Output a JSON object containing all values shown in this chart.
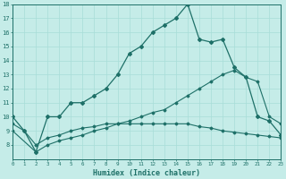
{
  "xlabel": "Humidex (Indice chaleur)",
  "bg_color": "#c5ece8",
  "line_color": "#1e7068",
  "grid_color": "#a8ddd8",
  "spine_color": "#1e7068",
  "xmin": 0,
  "xmax": 23,
  "ymin": 7,
  "ymax": 18,
  "x_main": [
    0,
    1,
    2,
    3,
    4,
    5,
    6,
    7,
    8,
    9,
    10,
    11,
    12,
    13,
    14,
    15,
    16,
    17,
    18,
    19,
    20,
    21,
    22,
    23
  ],
  "y_main": [
    10,
    9,
    7.5,
    10,
    10,
    11,
    11,
    11.5,
    12,
    13,
    14.5,
    15,
    16,
    16.5,
    17,
    18,
    15.5,
    15.3,
    15.5,
    13.5,
    12.8,
    10,
    9.7,
    8.7
  ],
  "x_line2": [
    0,
    1,
    2,
    3,
    4,
    5,
    6,
    7,
    8,
    9,
    10,
    11,
    12,
    13,
    14,
    15,
    16,
    17,
    18,
    19,
    20,
    21,
    22,
    23
  ],
  "y_line2": [
    9.5,
    9.0,
    8.0,
    8.5,
    8.7,
    9.0,
    9.2,
    9.3,
    9.5,
    9.5,
    9.5,
    9.5,
    9.5,
    9.5,
    9.5,
    9.5,
    9.3,
    9.2,
    9.0,
    8.9,
    8.8,
    8.7,
    8.6,
    8.5
  ],
  "x_line3": [
    0,
    2,
    3,
    4,
    5,
    6,
    7,
    8,
    9,
    10,
    11,
    12,
    13,
    14,
    15,
    16,
    17,
    18,
    19,
    20,
    21,
    22,
    23
  ],
  "y_line3": [
    9.0,
    7.5,
    8.0,
    8.3,
    8.5,
    8.7,
    9.0,
    9.2,
    9.5,
    9.7,
    10.0,
    10.3,
    10.5,
    11.0,
    11.5,
    12.0,
    12.5,
    13.0,
    13.3,
    12.8,
    12.5,
    10.0,
    9.5
  ]
}
